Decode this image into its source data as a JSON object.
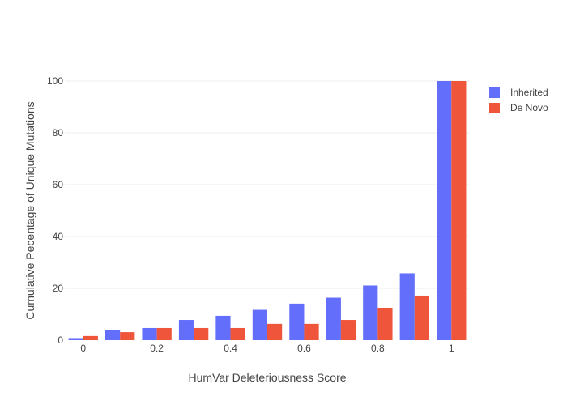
{
  "chart_data": {
    "type": "bar",
    "title": "",
    "xlabel": "HumVar Deleteriousness Score",
    "ylabel": "Cumulative Pecentage of Unique Mutations",
    "x": [
      0,
      0.1,
      0.2,
      0.3,
      0.4,
      0.5,
      0.6,
      0.7,
      0.8,
      0.9,
      1.0
    ],
    "xticks": [
      {
        "value": 0,
        "label": "0"
      },
      {
        "value": 0.2,
        "label": "0.2"
      },
      {
        "value": 0.4,
        "label": "0.4"
      },
      {
        "value": 0.6,
        "label": "0.6"
      },
      {
        "value": 0.8,
        "label": "0.8"
      },
      {
        "value": 1.0,
        "label": "1"
      }
    ],
    "yticks": [
      {
        "value": 0,
        "label": "0"
      },
      {
        "value": 20,
        "label": "20"
      },
      {
        "value": 40,
        "label": "40"
      },
      {
        "value": 60,
        "label": "60"
      },
      {
        "value": 80,
        "label": "80"
      },
      {
        "value": 100,
        "label": "100"
      }
    ],
    "xlim": [
      -0.05,
      1.05
    ],
    "ylim": [
      0,
      100
    ],
    "grid": true,
    "legend_position": "top-right",
    "series": [
      {
        "name": "Inherited",
        "color": "#636efa",
        "values": [
          0.8,
          3.9,
          4.7,
          7.8,
          9.4,
          11.7,
          14.1,
          16.4,
          21.1,
          25.8,
          100
        ]
      },
      {
        "name": "De Novo",
        "color": "#ef553b",
        "values": [
          1.6,
          3.1,
          4.7,
          4.7,
          4.7,
          6.3,
          6.3,
          7.8,
          12.5,
          17.2,
          100
        ]
      }
    ]
  }
}
